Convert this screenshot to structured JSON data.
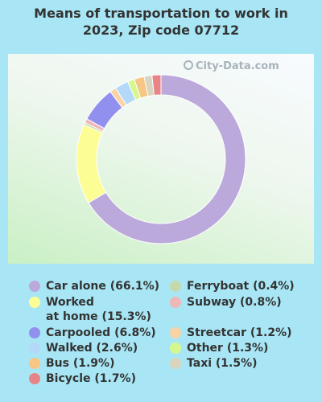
{
  "title_line1": "Means of transportation to work in",
  "title_line2": "2023, Zip code 07712",
  "watermark": "City-Data.com",
  "chart_data": {
    "type": "pie",
    "style": "donut",
    "series": [
      {
        "name": "Car alone",
        "value": 66.1,
        "label": "Car alone (66.1%)",
        "color": "#bca9dc"
      },
      {
        "name": "Worked at home",
        "value": 15.3,
        "label": "Worked",
        "label2": "at home (15.3%)",
        "color": "#fdfd96"
      },
      {
        "name": "Carpooled",
        "value": 6.8,
        "label": "Carpooled (6.8%)",
        "color": "#9290ee"
      },
      {
        "name": "Walked",
        "value": 2.6,
        "label": "Walked (2.6%)",
        "color": "#b4d9f8"
      },
      {
        "name": "Bus",
        "value": 1.9,
        "label": "Bus (1.9%)",
        "color": "#f7c684"
      },
      {
        "name": "Bicycle",
        "value": 1.7,
        "label": "Bicycle (1.7%)",
        "color": "#e88488"
      },
      {
        "name": "Ferryboat",
        "value": 0.4,
        "label": "Ferryboat (0.4%)",
        "color": "#c4d9ac"
      },
      {
        "name": "Subway",
        "value": 0.8,
        "label": "Subway (0.8%)",
        "color": "#f0b7b8"
      },
      {
        "name": "Streetcar",
        "value": 1.2,
        "label": "Streetcar (1.2%)",
        "color": "#f9d3a5"
      },
      {
        "name": "Other",
        "value": 1.3,
        "label": "Other (1.3%)",
        "color": "#d6f78e"
      },
      {
        "name": "Taxi",
        "value": 1.5,
        "label": "Taxi (1.5%)",
        "color": "#d9d4bd"
      }
    ],
    "slice_order": [
      "Car alone",
      "Worked at home",
      "Ferryboat",
      "Subway",
      "Carpooled",
      "Streetcar",
      "Walked",
      "Other",
      "Bus",
      "Taxi",
      "Bicycle"
    ]
  }
}
